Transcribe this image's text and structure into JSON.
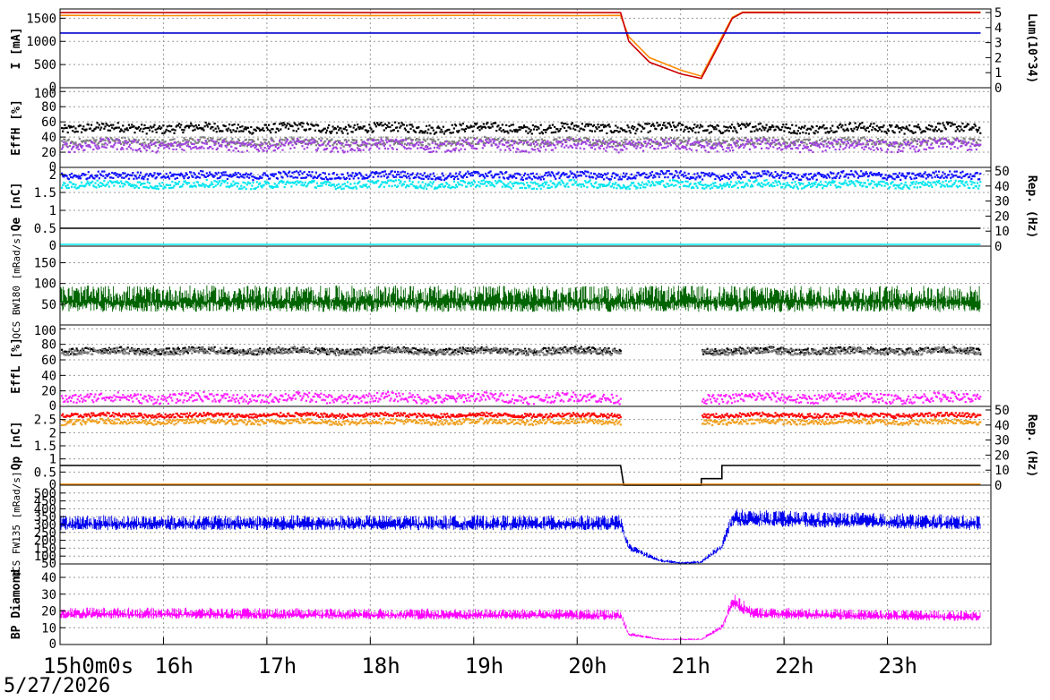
{
  "chart_data": {
    "type": "line",
    "date": "5/27/2026",
    "x_ticks": [
      "15h0m0s",
      "16h",
      "17h",
      "18h",
      "19h",
      "20h",
      "21h",
      "22h",
      "23h"
    ],
    "x_unit": "hour",
    "x_range": [
      15,
      24
    ],
    "panels": [
      {
        "id": "current",
        "ylabel": "I [mA]",
        "ylabel_right": "Lum(10^34)",
        "ylim": [
          0,
          1700
        ],
        "yticks": [
          "0",
          "500",
          "1000",
          "1500"
        ],
        "yticks_right": [
          "0",
          "1",
          "2",
          "3",
          "4",
          "5"
        ],
        "series": [
          {
            "color": "#ff8c00",
            "style": "line",
            "points": [
              [
                15.0,
                1560
              ],
              [
                16.0,
                1555
              ],
              [
                17.0,
                1560
              ],
              [
                18.0,
                1558
              ],
              [
                19.0,
                1560
              ],
              [
                20.0,
                1556
              ],
              [
                20.42,
                1560
              ],
              [
                20.5,
                1100
              ],
              [
                20.7,
                650
              ],
              [
                21.0,
                380
              ],
              [
                21.2,
                250
              ],
              [
                21.4,
                1100
              ],
              [
                21.5,
                1520
              ],
              [
                21.6,
                1630
              ],
              [
                22.0,
                1630
              ],
              [
                23.0,
                1625
              ],
              [
                23.9,
                1630
              ]
            ]
          },
          {
            "color": "#cc0000",
            "style": "line",
            "points": [
              [
                15.0,
                1620
              ],
              [
                20.42,
                1620
              ],
              [
                20.5,
                1000
              ],
              [
                20.7,
                550
              ],
              [
                21.0,
                300
              ],
              [
                21.2,
                200
              ],
              [
                21.4,
                1050
              ],
              [
                21.5,
                1500
              ],
              [
                21.6,
                1620
              ],
              [
                23.9,
                1620
              ]
            ]
          },
          {
            "color": "#0000cc",
            "style": "line",
            "points": [
              [
                15.0,
                1180
              ],
              [
                23.9,
                1180
              ]
            ]
          }
        ]
      },
      {
        "id": "eff-h",
        "ylabel": "EffH [%]",
        "ylim": [
          0,
          105
        ],
        "yticks": [
          "0",
          "20",
          "40",
          "60",
          "80",
          "100"
        ],
        "series": [
          {
            "color": "#000000",
            "style": "dots",
            "level": 53,
            "spread": 6
          },
          {
            "color": "#808080",
            "style": "dots",
            "level": 35,
            "spread": 5
          },
          {
            "color": "#a040e0",
            "style": "dots",
            "level": 30,
            "spread": 7
          }
        ]
      },
      {
        "id": "charge-e",
        "ylabel": "Qe [nC]",
        "ylabel_right": "Rep. (Hz)",
        "ylim": [
          0,
          2.2
        ],
        "yticks": [
          "0",
          "0.5",
          "1",
          "1.5",
          "2"
        ],
        "yticks_right": [
          "0",
          "10",
          "20",
          "30",
          "40",
          "50"
        ],
        "series": [
          {
            "color": "#1010ff",
            "style": "dots",
            "level": 2.0,
            "spread": 0.1
          },
          {
            "color": "#00e5ee",
            "style": "dots",
            "level": 1.75,
            "spread": 0.1
          },
          {
            "color": "#000000",
            "style": "line",
            "level": 0.5
          },
          {
            "color": "#00e5ee",
            "style": "line",
            "level": 0.05
          }
        ]
      },
      {
        "id": "qcs-bw180",
        "ylabel": "QCS BW180 [mRad/s]",
        "ylim": [
          0,
          190
        ],
        "yticks": [
          "50",
          "100",
          "150"
        ],
        "series": [
          {
            "color": "#006400",
            "style": "noise",
            "level": 55,
            "spread": 40
          }
        ]
      },
      {
        "id": "eff-l",
        "ylabel": "EffL [%]",
        "ylim": [
          0,
          105
        ],
        "yticks": [
          "0",
          "20",
          "40",
          "60",
          "80",
          "100"
        ],
        "series": [
          {
            "color": "#000000",
            "style": "dots",
            "level": 73,
            "spread": 4,
            "gap": [
              20.42,
              21.2
            ]
          },
          {
            "color": "#808080",
            "style": "dots",
            "level": 72,
            "spread": 4,
            "gap": [
              20.42,
              21.2
            ]
          },
          {
            "color": "#ff20ff",
            "style": "dots",
            "level": 12,
            "spread": 6,
            "gap": [
              20.42,
              21.2
            ]
          }
        ]
      },
      {
        "id": "charge-p",
        "ylabel": "Qp [nC]",
        "ylabel_right": "Rep. (Hz)",
        "ylim": [
          0,
          3.0
        ],
        "yticks": [
          "0",
          "0.5",
          "1",
          "1.5",
          "2",
          "2.5"
        ],
        "yticks_right": [
          "0",
          "10",
          "20",
          "30",
          "40",
          "50"
        ],
        "series": [
          {
            "color": "#ff0000",
            "style": "dots",
            "level": 2.7,
            "spread": 0.08,
            "gap": [
              20.42,
              21.2
            ]
          },
          {
            "color": "#f0a020",
            "style": "dots",
            "level": 2.45,
            "spread": 0.1,
            "gap": [
              20.42,
              21.2
            ]
          },
          {
            "color": "#000000",
            "style": "line",
            "points": [
              [
                15.0,
                0.75
              ],
              [
                20.42,
                0.75
              ],
              [
                20.45,
                0
              ],
              [
                21.2,
                0
              ],
              [
                21.2,
                0.25
              ],
              [
                21.4,
                0.25
              ],
              [
                21.4,
                0.75
              ],
              [
                23.9,
                0.75
              ]
            ]
          },
          {
            "color": "#ff8c00",
            "style": "line",
            "points": [
              [
                15.0,
                0.03
              ],
              [
                23.9,
                0.03
              ]
            ]
          }
        ]
      },
      {
        "id": "qcs-fw135",
        "ylabel": "QCS FW135 [mRad/s]",
        "ylim": [
          50,
          550
        ],
        "yticks": [
          "50",
          "100",
          "150",
          "200",
          "250",
          "300",
          "350",
          "400",
          "450",
          "500"
        ],
        "series": [
          {
            "color": "#0000ee",
            "style": "noise",
            "level": 300,
            "spread": 60,
            "envelope": [
              [
                15.0,
                300
              ],
              [
                20.42,
                300
              ],
              [
                20.5,
                150
              ],
              [
                20.8,
                70
              ],
              [
                21.0,
                55
              ],
              [
                21.2,
                60
              ],
              [
                21.4,
                160
              ],
              [
                21.5,
                330
              ],
              [
                23.9,
                300
              ]
            ]
          }
        ]
      },
      {
        "id": "bp-diamond",
        "ylabel": "BP Diamond",
        "ylim": [
          0,
          48
        ],
        "yticks": [
          "0",
          "10",
          "20",
          "30",
          "40"
        ],
        "series": [
          {
            "color": "#ff00ff",
            "style": "noise",
            "level": 17,
            "spread": 4,
            "envelope": [
              [
                15.0,
                18
              ],
              [
                20.42,
                17
              ],
              [
                20.5,
                6
              ],
              [
                20.8,
                3
              ],
              [
                21.2,
                3
              ],
              [
                21.4,
                10
              ],
              [
                21.5,
                25
              ],
              [
                21.7,
                18
              ],
              [
                23.9,
                16
              ]
            ]
          }
        ]
      }
    ]
  }
}
